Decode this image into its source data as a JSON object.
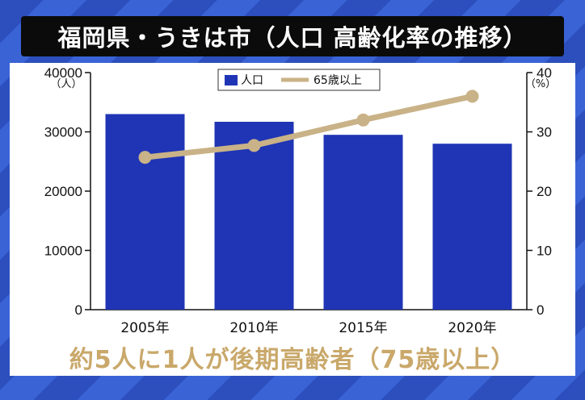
{
  "title": "福岡県・うきは市（人口 高齢化率の推移）",
  "caption": "約5人に1人が後期高齢者（75歳以上）",
  "colors": {
    "bar": "#1f35b5",
    "line": "#c9b287",
    "caption": "#c9a86a"
  },
  "chart_data": {
    "type": "bar",
    "categories": [
      "2005年",
      "2010年",
      "2015年",
      "2020年"
    ],
    "series": [
      {
        "name": "人口",
        "type": "bar",
        "axis": "left",
        "values": [
          33000,
          31700,
          29500,
          28000
        ]
      },
      {
        "name": "65歳以上",
        "type": "line",
        "axis": "right",
        "values": [
          25.7,
          27.7,
          32.0,
          36.0
        ]
      }
    ],
    "y_left": {
      "unit": "（人）",
      "ylim": [
        0,
        40000
      ],
      "ticks": [
        0,
        10000,
        20000,
        30000,
        40000
      ]
    },
    "y_right": {
      "unit": "（%）",
      "ylim": [
        0,
        40
      ],
      "ticks": [
        0,
        10,
        20,
        30,
        40
      ]
    },
    "legend": {
      "position": "top-center"
    },
    "grid": false
  }
}
